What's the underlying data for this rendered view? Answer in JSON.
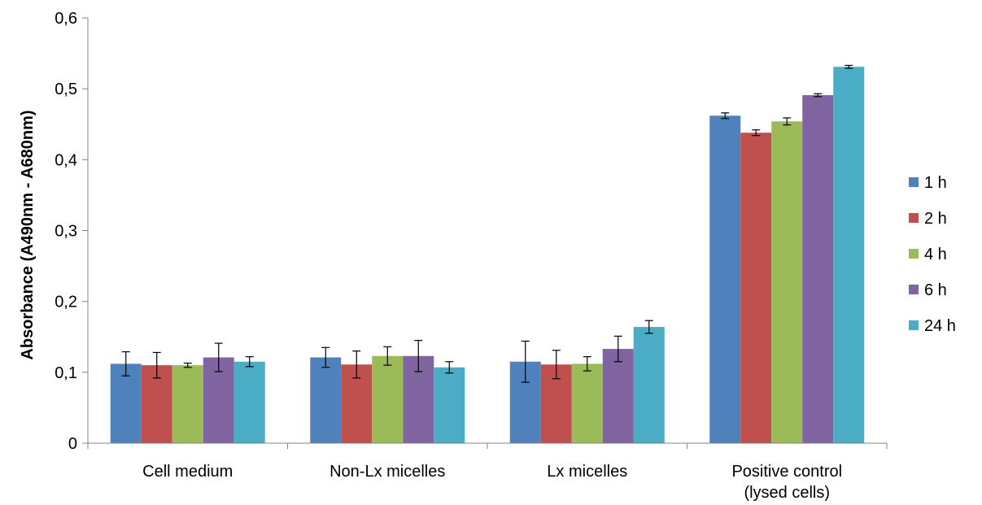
{
  "chart_data": {
    "type": "bar",
    "title": "",
    "xlabel": "",
    "ylabel": "Absorbance (A490nm - A680nm)",
    "ylim": [
      0,
      0.6
    ],
    "yticks": [
      0,
      0.1,
      0.2,
      0.3,
      0.4,
      0.5,
      0.6
    ],
    "ytick_labels": [
      "0",
      "0,1",
      "0,2",
      "0,3",
      "0,4",
      "0,5",
      "0,6"
    ],
    "categories": [
      [
        "Cell medium"
      ],
      [
        "Non-Lx micelles"
      ],
      [
        "Lx micelles"
      ],
      [
        "Positive control",
        "(lysed cells)"
      ]
    ],
    "series": [
      {
        "name": "1 h",
        "color": "#4F81BD",
        "values": [
          0.112,
          0.121,
          0.115,
          0.462
        ],
        "errors": [
          0.017,
          0.014,
          0.029,
          0.004
        ]
      },
      {
        "name": "2 h",
        "color": "#C0504D",
        "values": [
          0.11,
          0.111,
          0.111,
          0.438
        ],
        "errors": [
          0.018,
          0.019,
          0.02,
          0.004
        ]
      },
      {
        "name": "4 h",
        "color": "#9BBB59",
        "values": [
          0.11,
          0.123,
          0.112,
          0.454
        ],
        "errors": [
          0.003,
          0.013,
          0.01,
          0.005
        ]
      },
      {
        "name": "6 h",
        "color": "#8064A2",
        "values": [
          0.121,
          0.123,
          0.133,
          0.491
        ],
        "errors": [
          0.02,
          0.022,
          0.018,
          0.002
        ]
      },
      {
        "name": "24 h",
        "color": "#4BACC6",
        "values": [
          0.115,
          0.107,
          0.164,
          0.531
        ],
        "errors": [
          0.007,
          0.008,
          0.009,
          0.002
        ]
      }
    ],
    "error_bars": true,
    "grid": false,
    "legend_position": "right"
  }
}
